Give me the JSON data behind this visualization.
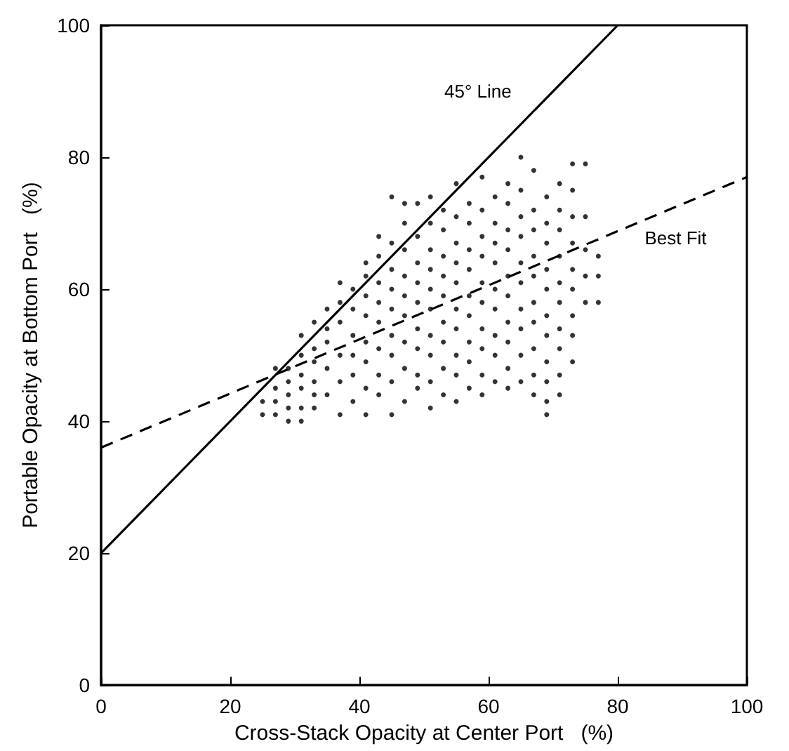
{
  "chart_data": {
    "type": "scatter",
    "xlabel": "Cross-Stack Opacity at Center Port   (%)",
    "ylabel": "Portable Opacity at Bottom Port   (%)",
    "xlim": [
      0,
      100
    ],
    "xticks": [
      0,
      20,
      40,
      60,
      80,
      100
    ],
    "ylim": [
      0,
      100
    ],
    "yticks": [
      0,
      20,
      40,
      60,
      80,
      100
    ],
    "grid": false,
    "legend": false,
    "marker": "circle",
    "series": [
      {
        "color": "#000000",
        "x": [
          25,
          25,
          27,
          27,
          27,
          27,
          29,
          29,
          29,
          29,
          29,
          31,
          31,
          31,
          31,
          31,
          31,
          33,
          33,
          33,
          33,
          33,
          33,
          35,
          35,
          35,
          35,
          35,
          37,
          37,
          37,
          37,
          37,
          37,
          39,
          39,
          39,
          39,
          39,
          39,
          41,
          41,
          41,
          41,
          41,
          41,
          41,
          41,
          43,
          43,
          43,
          43,
          43,
          43,
          43,
          43,
          45,
          45,
          45,
          45,
          45,
          45,
          45,
          45,
          45,
          47,
          47,
          47,
          47,
          47,
          47,
          47,
          47,
          47,
          49,
          49,
          49,
          49,
          49,
          49,
          49,
          49,
          49,
          51,
          51,
          51,
          51,
          51,
          51,
          51,
          51,
          51,
          51,
          53,
          53,
          53,
          53,
          53,
          53,
          53,
          53,
          53,
          55,
          55,
          55,
          55,
          55,
          55,
          55,
          55,
          55,
          55,
          57,
          57,
          57,
          57,
          57,
          57,
          57,
          57,
          57,
          59,
          59,
          59,
          59,
          59,
          59,
          59,
          59,
          59,
          59,
          61,
          61,
          61,
          61,
          61,
          61,
          61,
          61,
          61,
          63,
          63,
          63,
          63,
          63,
          63,
          63,
          63,
          63,
          63,
          65,
          65,
          65,
          65,
          65,
          65,
          65,
          65,
          65,
          65,
          67,
          67,
          67,
          67,
          67,
          67,
          67,
          67,
          67,
          67,
          69,
          69,
          69,
          69,
          69,
          69,
          69,
          69,
          69,
          69,
          69,
          71,
          71,
          71,
          71,
          71,
          71,
          71,
          71,
          71,
          71,
          73,
          73,
          73,
          73,
          73,
          73,
          73,
          73,
          73,
          75,
          75,
          75,
          75,
          75,
          77,
          77,
          77
        ],
        "values": [
          41,
          43,
          41,
          43,
          45,
          48,
          40,
          42,
          44,
          46,
          48,
          40,
          42,
          45,
          47,
          50,
          53,
          42,
          44,
          46,
          49,
          51,
          55,
          44,
          48,
          52,
          54,
          57,
          41,
          46,
          50,
          55,
          58,
          61,
          43,
          47,
          50,
          53,
          57,
          60,
          41,
          45,
          49,
          52,
          56,
          59,
          62,
          64,
          44,
          47,
          51,
          55,
          58,
          61,
          65,
          68,
          41,
          46,
          50,
          53,
          57,
          60,
          63,
          67,
          74,
          43,
          48,
          52,
          56,
          59,
          62,
          66,
          70,
          73,
          45,
          47,
          51,
          54,
          58,
          61,
          64,
          68,
          73,
          42,
          46,
          50,
          53,
          57,
          60,
          63,
          66,
          70,
          74,
          44,
          48,
          52,
          55,
          59,
          62,
          65,
          69,
          72,
          43,
          47,
          50,
          54,
          57,
          61,
          64,
          67,
          71,
          76,
          45,
          49,
          52,
          56,
          59,
          63,
          66,
          70,
          73,
          44,
          47,
          51,
          54,
          58,
          61,
          65,
          68,
          72,
          77,
          46,
          50,
          53,
          57,
          60,
          64,
          67,
          70,
          74,
          45,
          48,
          52,
          55,
          59,
          62,
          66,
          69,
          73,
          76,
          46,
          50,
          54,
          57,
          61,
          64,
          68,
          71,
          75,
          80,
          44,
          47,
          51,
          55,
          58,
          62,
          65,
          69,
          72,
          78,
          41,
          43,
          46,
          49,
          53,
          56,
          60,
          63,
          67,
          70,
          74,
          44,
          47,
          51,
          54,
          58,
          61,
          65,
          69,
          72,
          76,
          49,
          53,
          56,
          60,
          63,
          67,
          71,
          75,
          79,
          58,
          62,
          66,
          71,
          79,
          58,
          62,
          65
        ]
      },
      {
        "type": "line",
        "name": "45° Line",
        "color": "#000000",
        "line_style": "solid",
        "marker": "none",
        "x": [
          0,
          80
        ],
        "values": [
          20,
          100
        ]
      },
      {
        "type": "line",
        "name": "Best Fit",
        "color": "#000000",
        "line_style": "dashed",
        "marker": "none",
        "x": [
          0,
          100
        ],
        "values": [
          36,
          77
        ]
      }
    ]
  }
}
